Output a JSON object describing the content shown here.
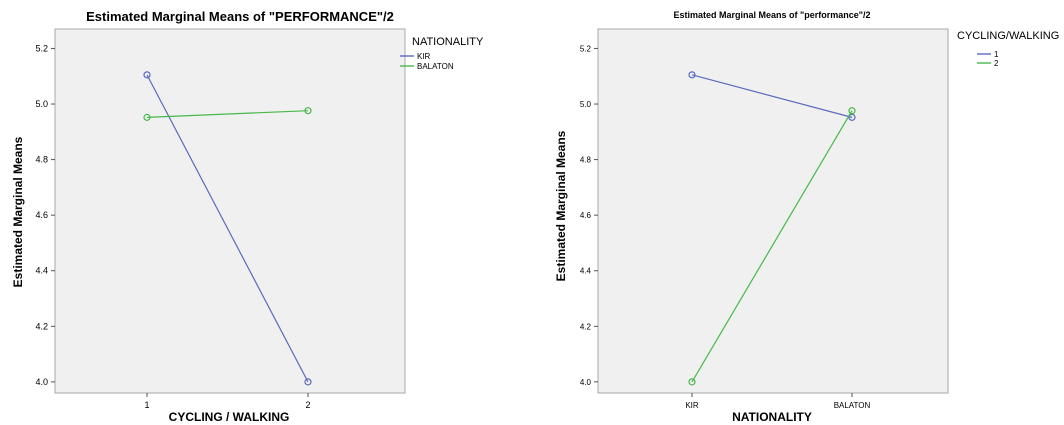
{
  "chart_data": [
    {
      "type": "line",
      "title": "Estimated Marginal Means of \"PERFORMANCE\"/2",
      "xlabel": "CYCLING / WALKING",
      "ylabel": "Estimated Marginal Means",
      "categories": [
        "1",
        "2"
      ],
      "ylim": [
        3.96,
        5.27
      ],
      "yticks": [
        "4.0",
        "4.2",
        "4.4",
        "4.6",
        "4.8",
        "5.0",
        "5.2"
      ],
      "grid": false,
      "legend_title": "NATIONALITY",
      "legend_position": "right",
      "series": [
        {
          "name": "KIR",
          "color": "#5a6bbf",
          "values": [
            5.105,
            4.0
          ]
        },
        {
          "name": "BALATON",
          "color": "#47b84a",
          "values": [
            4.952,
            4.976
          ]
        }
      ]
    },
    {
      "type": "line",
      "title": "Estimated Marginal Means of \"performance\"/2",
      "xlabel": "NATIONALITY",
      "ylabel": "Estimated Marginal Means",
      "categories": [
        "KIR",
        "BALATON"
      ],
      "ylim": [
        3.96,
        5.27
      ],
      "yticks": [
        "4.0",
        "4.2",
        "4.4",
        "4.6",
        "4.8",
        "5.0",
        "5.2"
      ],
      "grid": false,
      "legend_title": "CYCLING/WALKING",
      "legend_position": "right",
      "series": [
        {
          "name": "1",
          "color": "#5a6bbf",
          "values": [
            5.105,
            4.952
          ]
        },
        {
          "name": "2",
          "color": "#47b84a",
          "values": [
            4.0,
            4.976
          ]
        }
      ]
    }
  ]
}
